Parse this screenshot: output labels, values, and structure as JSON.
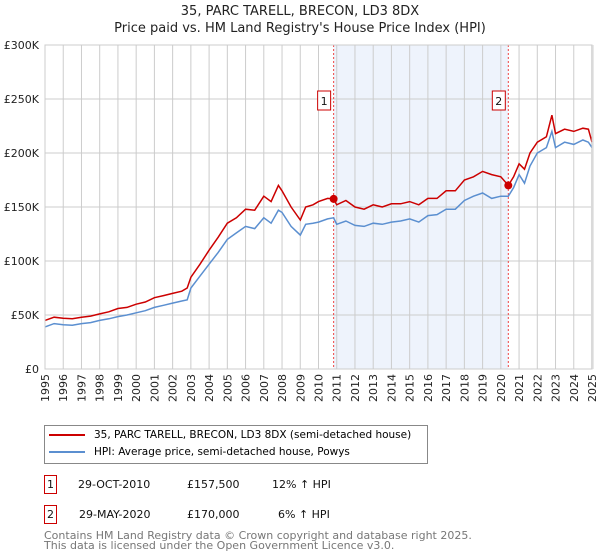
{
  "chart_data": {
    "type": "line",
    "title": "35, PARC TARELL, BRECON, LD3 8DX",
    "subtitle": "Price paid vs. HM Land Registry's House Price Index (HPI)",
    "xlim": [
      1995,
      2025
    ],
    "ylim": [
      0,
      300000
    ],
    "yticks": [
      0,
      50000,
      100000,
      150000,
      200000,
      250000,
      300000
    ],
    "ytick_labels": [
      "£0",
      "£50K",
      "£100K",
      "£150K",
      "£200K",
      "£250K",
      "£300K"
    ],
    "xtick_labels": [
      "1995",
      "1996",
      "1997",
      "1998",
      "1999",
      "2000",
      "2001",
      "2002",
      "2003",
      "2004",
      "2005",
      "2006",
      "2007",
      "2008",
      "2009",
      "2010",
      "2011",
      "2012",
      "2013",
      "2014",
      "2015",
      "2016",
      "2017",
      "2018",
      "2019",
      "2020",
      "2021",
      "2022",
      "2023",
      "2024",
      "2025"
    ],
    "grid": true,
    "colors": {
      "property": "#cc0000",
      "hpi": "#5b8fd0",
      "shade": "#eef3fc",
      "marker_line": "#ee4444"
    },
    "series": [
      {
        "name": "35, PARC TARELL, BRECON, LD3 8DX (semi-detached house)",
        "x": [
          1995,
          1995.5,
          1996,
          1996.5,
          1997,
          1997.5,
          1998,
          1998.5,
          1999,
          1999.5,
          2000,
          2000.5,
          2001,
          2001.5,
          2002,
          2002.5,
          2002.8,
          2003,
          2003.5,
          2004,
          2004.5,
          2005,
          2005.5,
          2006,
          2006.5,
          2007,
          2007.4,
          2007.8,
          2008,
          2008.5,
          2009,
          2009.3,
          2009.7,
          2010,
          2010.5,
          2010.83,
          2011,
          2011.5,
          2012,
          2012.5,
          2013,
          2013.5,
          2014,
          2014.5,
          2015,
          2015.5,
          2016,
          2016.5,
          2017,
          2017.5,
          2018,
          2018.5,
          2019,
          2019.5,
          2020,
          2020.41,
          2020.7,
          2021,
          2021.3,
          2021.6,
          2022,
          2022.5,
          2022.8,
          2023,
          2023.5,
          2024,
          2024.5,
          2024.8,
          2025
        ],
        "y": [
          45000,
          48000,
          47000,
          46500,
          48000,
          49000,
          51000,
          53000,
          56000,
          57000,
          60000,
          62000,
          66000,
          68000,
          70000,
          72000,
          75000,
          85000,
          97000,
          110000,
          122000,
          135000,
          140000,
          148000,
          147000,
          160000,
          155000,
          170000,
          165000,
          150000,
          138000,
          150000,
          152000,
          155000,
          158000,
          157500,
          152000,
          156000,
          150000,
          148000,
          152000,
          150000,
          153000,
          153000,
          155000,
          152000,
          158000,
          158000,
          165000,
          165000,
          175000,
          178000,
          183000,
          180000,
          178000,
          170000,
          178000,
          190000,
          185000,
          200000,
          210000,
          215000,
          235000,
          218000,
          222000,
          220000,
          223000,
          222000,
          210000
        ]
      },
      {
        "name": "HPI: Average price, semi-detached house, Powys",
        "x": [
          1995,
          1995.5,
          1996,
          1996.5,
          1997,
          1997.5,
          1998,
          1998.5,
          1999,
          1999.5,
          2000,
          2000.5,
          2001,
          2001.5,
          2002,
          2002.5,
          2002.8,
          2003,
          2003.5,
          2004,
          2004.5,
          2005,
          2005.5,
          2006,
          2006.5,
          2007,
          2007.4,
          2007.8,
          2008,
          2008.5,
          2009,
          2009.3,
          2009.7,
          2010,
          2010.5,
          2010.83,
          2011,
          2011.5,
          2012,
          2012.5,
          2013,
          2013.5,
          2014,
          2014.5,
          2015,
          2015.5,
          2016,
          2016.5,
          2017,
          2017.5,
          2018,
          2018.5,
          2019,
          2019.5,
          2020,
          2020.41,
          2020.7,
          2021,
          2021.3,
          2021.6,
          2022,
          2022.5,
          2022.8,
          2023,
          2023.5,
          2024,
          2024.5,
          2024.8,
          2025
        ],
        "y": [
          39000,
          42000,
          41000,
          40500,
          42000,
          43000,
          45000,
          46500,
          48500,
          50000,
          52000,
          54000,
          57000,
          59000,
          61000,
          63000,
          64000,
          75000,
          86000,
          97000,
          108000,
          120000,
          126000,
          132000,
          130000,
          140000,
          135000,
          147000,
          145000,
          132000,
          124000,
          134000,
          135000,
          136000,
          139000,
          140000,
          134000,
          137000,
          133000,
          132000,
          135000,
          134000,
          136000,
          137000,
          139000,
          136000,
          142000,
          143000,
          148000,
          148000,
          156000,
          160000,
          163000,
          158000,
          160000,
          160000,
          168000,
          180000,
          172000,
          188000,
          200000,
          205000,
          220000,
          205000,
          210000,
          208000,
          212000,
          210000,
          205000
        ]
      }
    ],
    "annotations": [
      {
        "label": "1",
        "x": 2010.83,
        "y": 157500
      },
      {
        "label": "2",
        "x": 2020.41,
        "y": 170000
      }
    ]
  },
  "legend": {
    "property": "35, PARC TARELL, BRECON, LD3 8DX (semi-detached house)",
    "hpi": "HPI: Average price, semi-detached house, Powys"
  },
  "sales": [
    {
      "num": "1",
      "date": "29-OCT-2010",
      "price": "£157,500",
      "delta": "12% ↑ HPI"
    },
    {
      "num": "2",
      "date": "29-MAY-2020",
      "price": "£170,000",
      "delta": "6% ↑ HPI"
    }
  ],
  "footer": {
    "line1": "Contains HM Land Registry data © Crown copyright and database right 2025.",
    "line2": "This data is licensed under the Open Government Licence v3.0."
  }
}
